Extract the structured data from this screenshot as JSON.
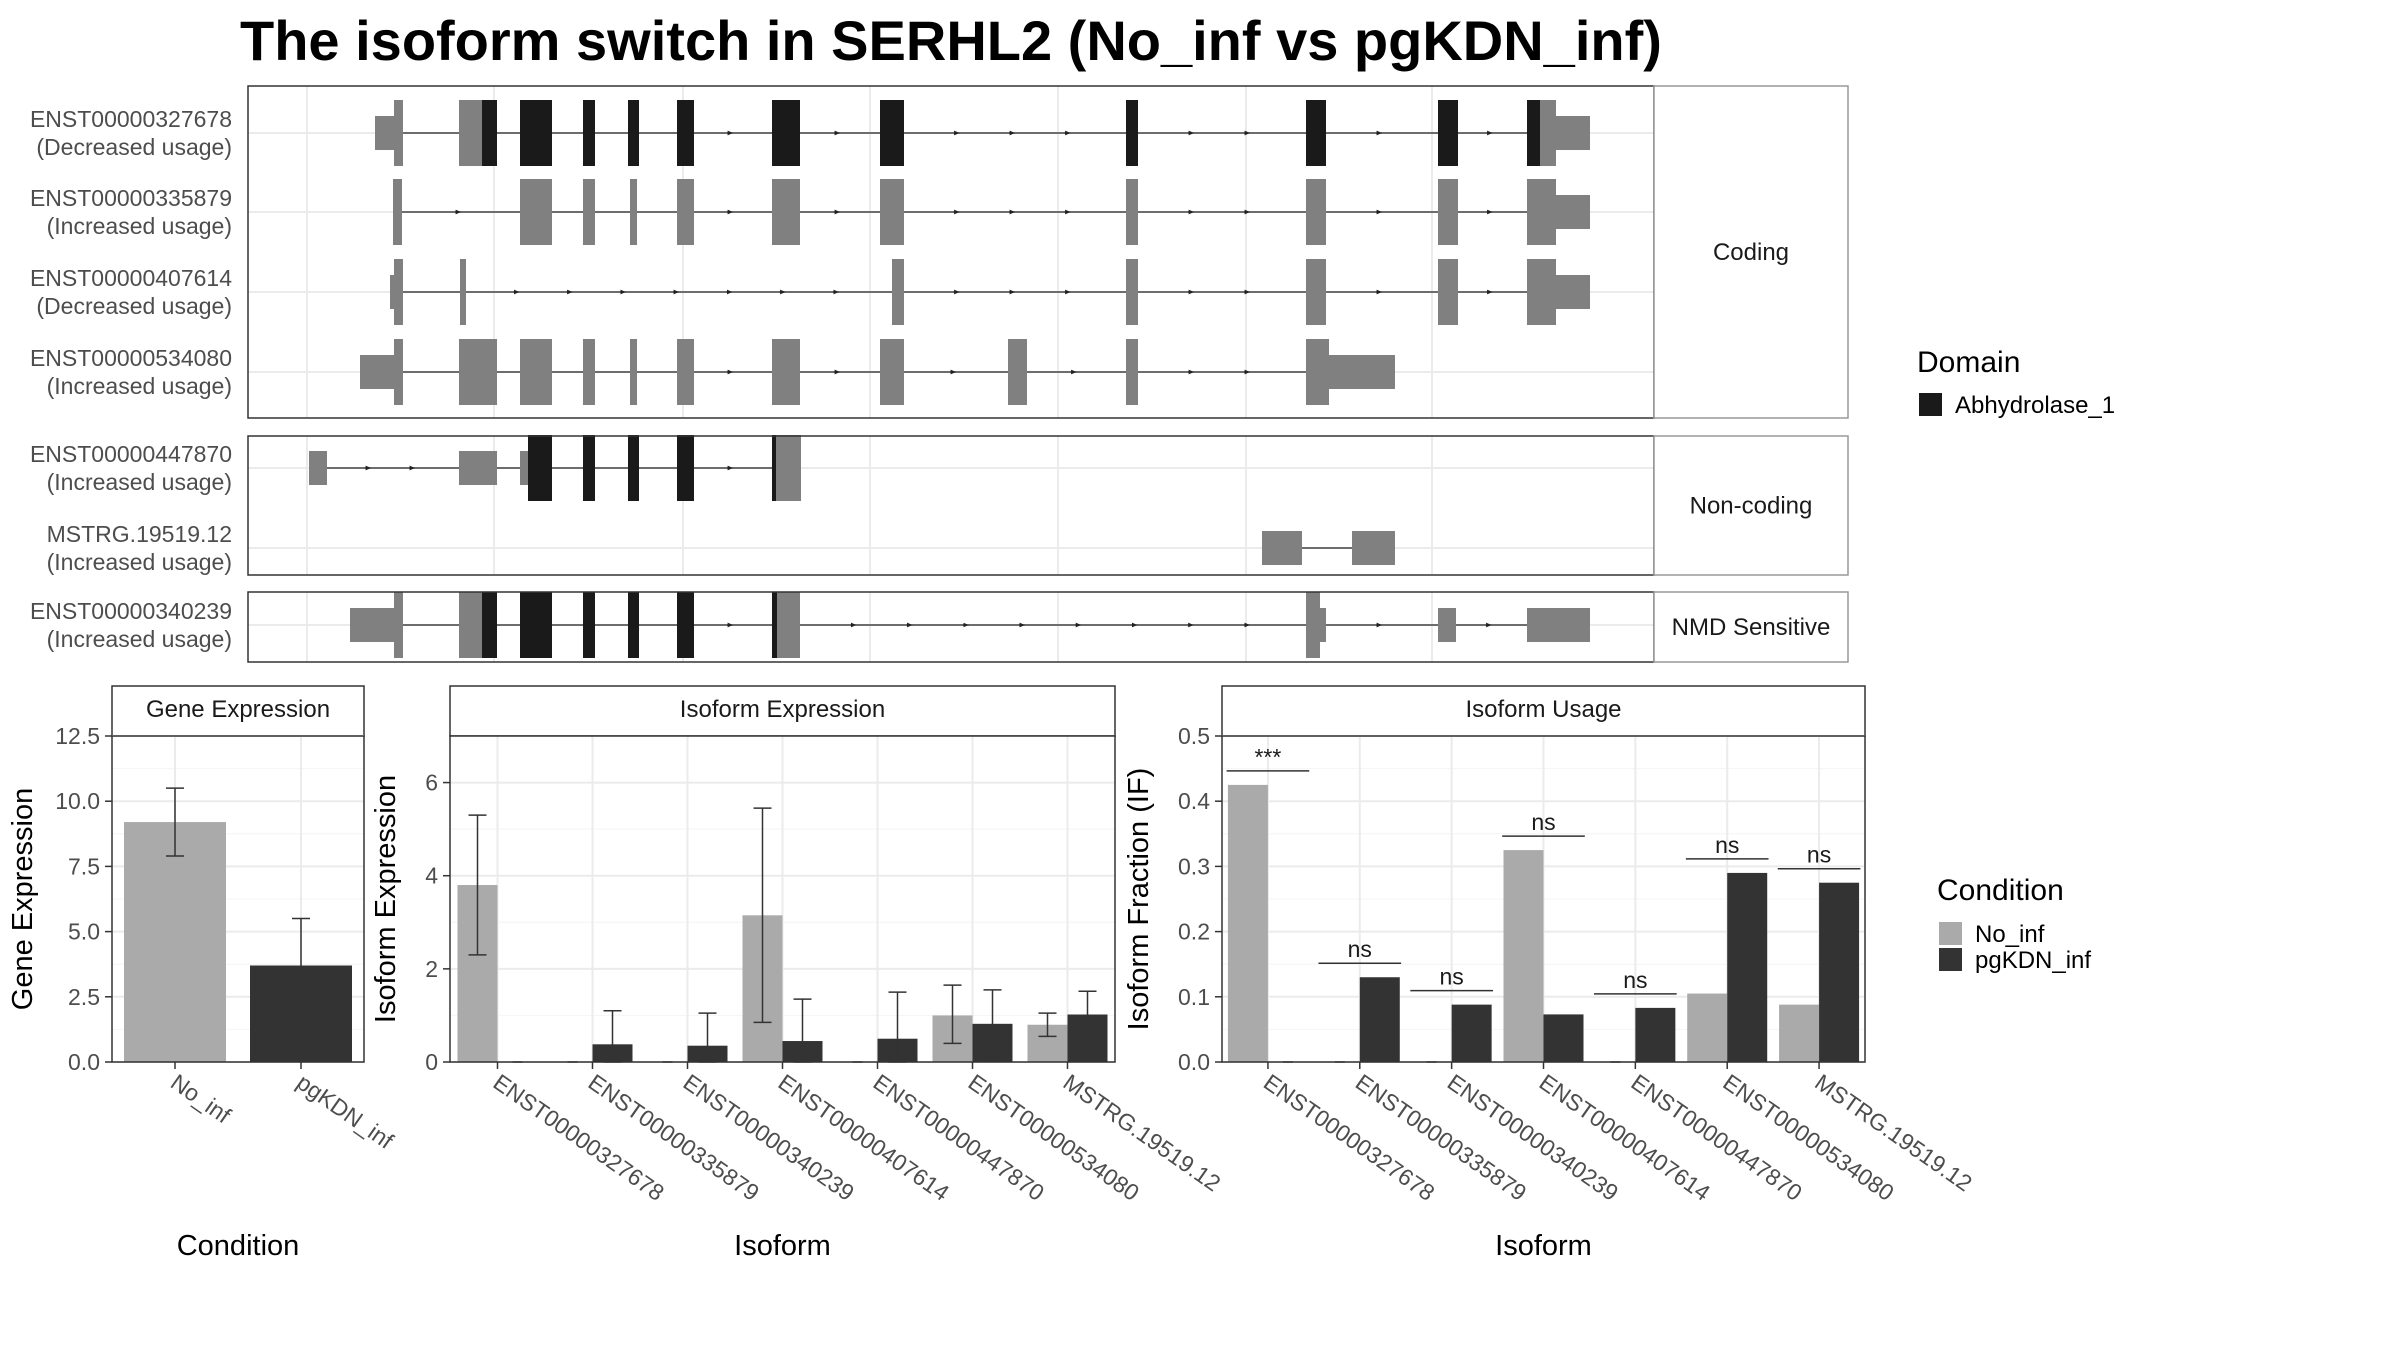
{
  "figure": {
    "title": "The isoform switch in SERHL2 (No_inf vs pgKDN_inf)"
  },
  "colors": {
    "exon": "#808080",
    "domain": "#1a1a1a",
    "no_inf": "#aaaaaa",
    "pgkdn_inf": "#333333",
    "grid": "#ebebeb",
    "strip": "#ffffff"
  },
  "chart_data": [
    {
      "type": "gene_structure",
      "panels": [
        {
          "label": "Coding",
          "isoforms": [
            {
              "id": "ENST00000327678",
              "usage": "(Decreased usage)"
            },
            {
              "id": "ENST00000335879",
              "usage": "(Increased usage)"
            },
            {
              "id": "ENST00000407614",
              "usage": "(Decreased usage)"
            },
            {
              "id": "ENST00000534080",
              "usage": "(Increased usage)"
            }
          ]
        },
        {
          "label": "Non-coding",
          "isoforms": [
            {
              "id": "ENST00000447870",
              "usage": "(Increased usage)"
            },
            {
              "id": "MSTRG.19519.12",
              "usage": "(Increased usage)"
            }
          ]
        },
        {
          "label": "NMD Sensitive",
          "isoforms": [
            {
              "id": "ENST00000340239",
              "usage": "(Increased usage)"
            }
          ]
        }
      ],
      "legend": {
        "title": "Domain",
        "items": [
          "Abhydrolase_1"
        ]
      }
    },
    {
      "type": "bar",
      "title": "Gene Expression",
      "xlabel": "Condition",
      "ylabel": "Gene Expression",
      "categories": [
        "No_inf",
        "pgKDN_inf"
      ],
      "values": [
        9.2,
        3.7
      ],
      "error_low": [
        7.9,
        1.9
      ],
      "error_high": [
        10.5,
        5.5
      ],
      "ylim": [
        0,
        12.5
      ],
      "yticks": [
        "0.0",
        "2.5",
        "5.0",
        "7.5",
        "10.0",
        "12.5"
      ]
    },
    {
      "type": "bar",
      "title": "Isoform Expression",
      "xlabel": "Isoform",
      "ylabel": "Isoform Expression",
      "categories": [
        "ENST00000327678",
        "ENST00000335879",
        "ENST00000340239",
        "ENST00000407614",
        "ENST00000447870",
        "ENST00000534080",
        "MSTRG.19519.12"
      ],
      "series": [
        {
          "name": "No_inf",
          "values": [
            3.8,
            0.0,
            0.0,
            3.15,
            0.0,
            1.0,
            0.8
          ],
          "error_low": [
            2.3,
            null,
            null,
            0.85,
            null,
            0.4,
            0.55
          ],
          "error_high": [
            5.3,
            null,
            null,
            5.45,
            null,
            1.65,
            1.05
          ]
        },
        {
          "name": "pgKDN_inf",
          "values": [
            0.0,
            0.38,
            0.35,
            0.45,
            0.5,
            0.82,
            1.02
          ],
          "error_low": [
            null,
            0.0,
            0.0,
            0.0,
            0.0,
            0.1,
            0.5
          ],
          "error_high": [
            null,
            1.1,
            1.05,
            1.35,
            1.5,
            1.55,
            1.52
          ]
        }
      ],
      "ylim": [
        0,
        7
      ],
      "yticks": [
        "0",
        "2",
        "4",
        "6"
      ]
    },
    {
      "type": "bar",
      "title": "Isoform Usage",
      "xlabel": "Isoform",
      "ylabel": "Isoform Fraction (IF)",
      "categories": [
        "ENST00000327678",
        "ENST00000335879",
        "ENST00000340239",
        "ENST00000407614",
        "ENST00000447870",
        "ENST00000534080",
        "MSTRG.19519.12"
      ],
      "series": [
        {
          "name": "No_inf",
          "values": [
            0.425,
            0.0,
            0.0,
            0.325,
            0.0,
            0.105,
            0.088
          ]
        },
        {
          "name": "pgKDN_inf",
          "values": [
            0.0,
            0.13,
            0.088,
            0.073,
            0.083,
            0.29,
            0.275
          ]
        }
      ],
      "significance": [
        "***",
        "ns",
        "ns",
        "ns",
        "ns",
        "ns",
        "ns"
      ],
      "ylim": [
        0,
        0.5
      ],
      "yticks": [
        "0.0",
        "0.1",
        "0.2",
        "0.3",
        "0.4",
        "0.5"
      ]
    }
  ],
  "legend_condition": {
    "title": "Condition",
    "items": [
      "No_inf",
      "pgKDN_inf"
    ]
  }
}
